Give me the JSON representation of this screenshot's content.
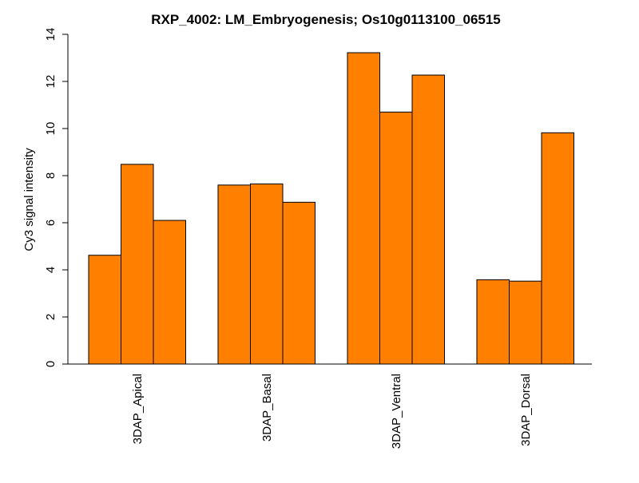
{
  "chart_data": {
    "type": "bar",
    "title": "RXP_4002: LM_Embryogenesis; Os10g0113100_06515",
    "xlabel": "",
    "ylabel": "Cy3 signal intensity",
    "ylim": [
      0,
      14
    ],
    "yticks": [
      0,
      2,
      4,
      6,
      8,
      10,
      12,
      14
    ],
    "categories": [
      "3DAP_Apical",
      "3DAP_Basal",
      "3DAP_Ventral",
      "3DAP_Dorsal"
    ],
    "replicates_per_category": 3,
    "values": [
      [
        4.62,
        8.48,
        6.1
      ],
      [
        7.6,
        7.65,
        6.87
      ],
      [
        13.22,
        10.7,
        12.27
      ],
      [
        3.58,
        3.52,
        9.82
      ]
    ],
    "bar_color": "#FF7F00",
    "bar_border_color": "#000000",
    "grid": false,
    "legend": "none"
  }
}
